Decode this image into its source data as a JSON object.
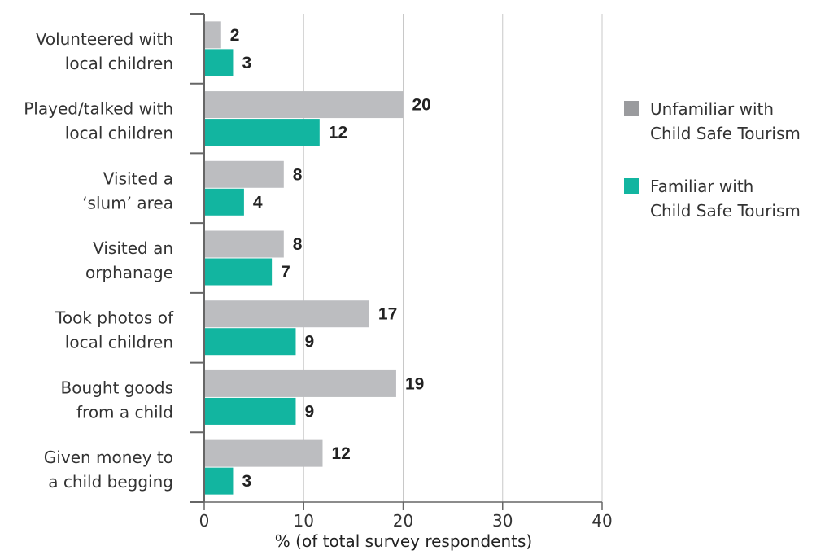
{
  "chart_data": {
    "type": "bar",
    "orientation": "horizontal",
    "categories": [
      [
        "Volunteered with",
        "local children"
      ],
      [
        "Played/talked with",
        "local children"
      ],
      [
        "Visited a",
        "‘slum’ area"
      ],
      [
        "Visited an",
        "orphanage"
      ],
      [
        "Took photos of",
        "local children"
      ],
      [
        "Bought goods",
        "from a child"
      ],
      [
        "Given money to",
        "a child begging"
      ]
    ],
    "series": [
      {
        "name": [
          "Unfamiliar with",
          "Child Safe Tourism"
        ],
        "color": "#bcbdc0",
        "legend_color": "#9a9b9e",
        "values": [
          1.7,
          20,
          8,
          8,
          16.6,
          19.3,
          11.9
        ],
        "labels": [
          "2",
          "20",
          "8",
          "8",
          "17",
          "19",
          "12"
        ]
      },
      {
        "name": [
          "Familiar with",
          "Child Safe Tourism"
        ],
        "color": "#12b5a0",
        "legend_color": "#12b5a0",
        "values": [
          2.9,
          11.6,
          4,
          6.8,
          9.2,
          9.2,
          2.9
        ],
        "labels": [
          "3",
          "12",
          "4",
          "7",
          "9",
          "9",
          "3"
        ]
      }
    ],
    "xticks": [
      "0",
      "10",
      "20",
      "30",
      "40"
    ],
    "xlim": [
      0,
      40
    ],
    "xlabel": "% (of total survey respondents)",
    "grid": true,
    "legend_position": "right"
  }
}
